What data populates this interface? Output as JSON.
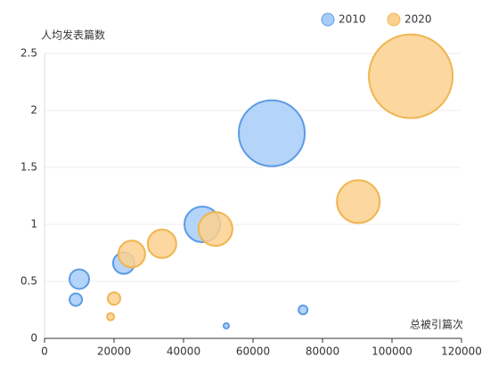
{
  "chart_data": {
    "type": "bubble",
    "y_label": "人均发表篇数",
    "x_label": "总被引篇次",
    "xlim": [
      0,
      120000
    ],
    "xticks": [
      0,
      20000,
      40000,
      60000,
      80000,
      100000,
      120000
    ],
    "ylim": [
      0,
      2.5
    ],
    "yticks": [
      0,
      0.5,
      1,
      1.5,
      2,
      2.5
    ],
    "grid": true,
    "legend": "top-right",
    "series": [
      {
        "name": "2010",
        "color": "#a8cdf8",
        "stroke": "#5b9be6",
        "x": [
          9000,
          10000,
          22800,
          45400,
          65400,
          52300,
          74400
        ],
        "values": [
          0.34,
          0.52,
          0.66,
          1.0,
          1.8,
          0.11,
          0.25
        ],
        "sizes": [
          49,
          121,
          144,
          400,
          1369,
          9,
          25
        ]
      },
      {
        "name": "2020",
        "color": "#fbd08e",
        "stroke": "#f0b550",
        "x": [
          19000,
          20000,
          25100,
          33800,
          49200,
          90300,
          105400
        ],
        "values": [
          0.19,
          0.35,
          0.74,
          0.83,
          0.96,
          1.2,
          2.3
        ],
        "sizes": [
          16,
          49,
          225,
          256,
          361,
          576,
          2209
        ]
      }
    ]
  }
}
